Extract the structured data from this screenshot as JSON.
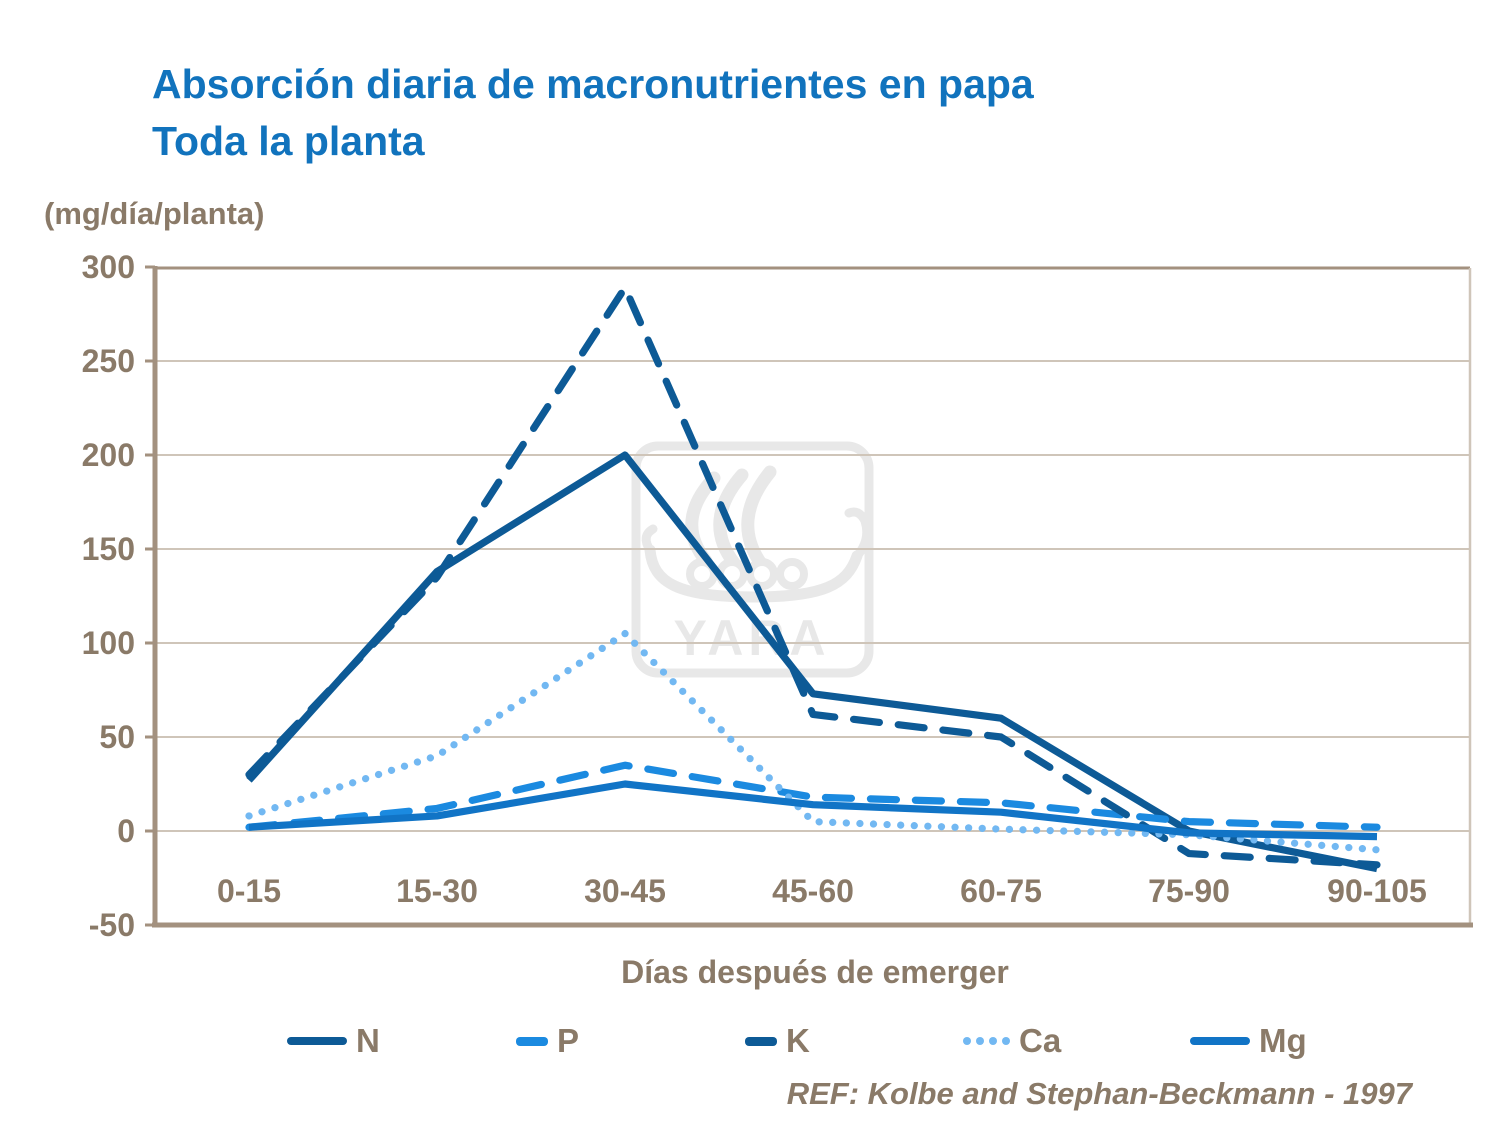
{
  "header": {
    "title_line1": "Absorción diaria de macronutrientes en papa",
    "title_line2": "Toda la planta",
    "title_color": "#1173bd"
  },
  "axis": {
    "text_color": "#8a7a68",
    "line_color": "#a3917f",
    "grid_color": "#cfc5b9"
  },
  "chart_data": {
    "type": "line",
    "title": "Absorción diaria de macronutrientes en papa - Toda la planta",
    "unit_label": "(mg/día/planta)",
    "xlabel": "Días después de emerger",
    "ylabel": "(mg/día/planta)",
    "categories": [
      "0-15",
      "15-30",
      "30-45",
      "45-60",
      "60-75",
      "75-90",
      "90-105"
    ],
    "yticks": [
      300,
      250,
      200,
      150,
      100,
      50,
      0,
      -50
    ],
    "ylim": [
      -50,
      300
    ],
    "grid": true,
    "legend_position": "bottom",
    "series": [
      {
        "name": "N",
        "color": "#0d5a96",
        "style": "solid",
        "values": [
          27,
          138,
          200,
          73,
          60,
          0,
          -20
        ]
      },
      {
        "name": "P",
        "color": "#1b8ae0",
        "style": "dashed",
        "values": [
          2,
          12,
          35,
          18,
          15,
          5,
          2
        ]
      },
      {
        "name": "K",
        "color": "#0d5a96",
        "style": "dashed",
        "values": [
          30,
          135,
          289,
          62,
          50,
          -12,
          -18
        ]
      },
      {
        "name": "Ca",
        "color": "#72b8f2",
        "style": "dotted",
        "values": [
          8,
          40,
          105,
          5,
          1,
          -2,
          -10
        ]
      },
      {
        "name": "Mg",
        "color": "#1174c6",
        "style": "solid",
        "values": [
          2,
          8,
          25,
          14,
          10,
          -1,
          -3
        ]
      }
    ]
  },
  "watermark": {
    "text": "YARA",
    "color": "#e8e8e8"
  },
  "footer": {
    "ref": "REF: Kolbe and Stephan-Beckmann - 1997"
  }
}
